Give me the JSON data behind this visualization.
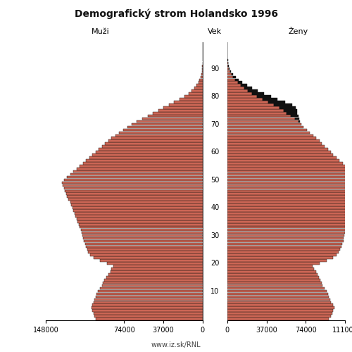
{
  "title": "Demografický strom Holandsko 1996",
  "label_males": "Muži",
  "label_age": "Vek",
  "label_females": "Ženy",
  "footnote": "www.iz.sk/RNL",
  "bar_color": "#cc6655",
  "black_color": "#111111",
  "edge_color": "#111111",
  "background": "#ffffff",
  "xlim_male": 148000,
  "xlim_female": 111000,
  "xticks_male": [
    148000,
    74000,
    37000,
    0
  ],
  "xticks_female": [
    0,
    37000,
    74000,
    111000
  ],
  "yticks": [
    10,
    20,
    30,
    40,
    50,
    60,
    70,
    80,
    90
  ],
  "males": [
    101000,
    102000,
    103000,
    104000,
    105000,
    104000,
    103000,
    102000,
    101000,
    100000,
    99000,
    97000,
    95000,
    94000,
    93000,
    91000,
    89000,
    87000,
    86000,
    84000,
    90000,
    97000,
    103000,
    106000,
    108000,
    109000,
    110000,
    111000,
    112000,
    113000,
    113500,
    114000,
    115000,
    116000,
    117000,
    118000,
    119000,
    120000,
    121000,
    122000,
    123000,
    124000,
    125000,
    126500,
    128000,
    129000,
    130000,
    131000,
    132000,
    133000,
    131000,
    128000,
    125000,
    122000,
    119000,
    116000,
    113000,
    110000,
    107000,
    104000,
    101000,
    98000,
    95000,
    92000,
    89000,
    86000,
    82000,
    79000,
    75000,
    71000,
    67000,
    62000,
    57000,
    52000,
    47000,
    42000,
    37000,
    32000,
    27000,
    22000,
    17500,
    13500,
    10500,
    8000,
    5800,
    4200,
    3000,
    2100,
    1400,
    900,
    560,
    340,
    200,
    120,
    70,
    40,
    22,
    12,
    6,
    3
  ],
  "males_black": [
    0,
    0,
    0,
    0,
    0,
    0,
    0,
    0,
    0,
    0,
    0,
    0,
    0,
    0,
    0,
    0,
    0,
    0,
    0,
    0,
    0,
    0,
    0,
    0,
    0,
    0,
    0,
    0,
    0,
    0,
    0,
    0,
    0,
    0,
    0,
    0,
    0,
    0,
    0,
    0,
    0,
    0,
    0,
    0,
    0,
    0,
    0,
    0,
    0,
    0,
    0,
    0,
    0,
    0,
    0,
    0,
    0,
    0,
    0,
    0,
    0,
    0,
    0,
    0,
    0,
    0,
    0,
    0,
    0,
    0,
    0,
    0,
    0,
    0,
    0,
    0,
    0,
    0,
    0,
    0,
    0,
    0,
    0,
    0,
    0,
    0,
    0,
    0,
    0,
    0,
    0,
    0,
    0,
    0,
    0,
    0,
    0,
    0,
    0,
    0
  ],
  "females": [
    96000,
    97500,
    99000,
    100000,
    101000,
    99500,
    98000,
    97000,
    96000,
    95000,
    94000,
    92000,
    90000,
    89000,
    88000,
    86500,
    85000,
    83500,
    82000,
    80500,
    87000,
    94000,
    100000,
    103000,
    105000,
    106500,
    107500,
    108500,
    109500,
    110000,
    110500,
    111000,
    112000,
    113000,
    114000,
    115000,
    116000,
    117000,
    118000,
    119000,
    119500,
    120500,
    121500,
    122500,
    124000,
    125000,
    126000,
    127000,
    128000,
    129000,
    127000,
    124000,
    121000,
    118000,
    115000,
    112000,
    109000,
    106000,
    103000,
    100000,
    98000,
    95000,
    92000,
    89000,
    87000,
    84000,
    81000,
    78000,
    75000,
    72000,
    70000,
    67000,
    64000,
    60000,
    56000,
    53000,
    49000,
    44000,
    38500,
    33000,
    28000,
    23500,
    19500,
    16000,
    13000,
    10000,
    7500,
    5500,
    3800,
    2500,
    1600,
    980,
    590,
    350,
    200,
    115,
    65,
    35,
    17,
    8
  ],
  "females_black": [
    0,
    0,
    0,
    0,
    0,
    0,
    0,
    0,
    0,
    0,
    0,
    0,
    0,
    0,
    0,
    0,
    0,
    0,
    0,
    0,
    0,
    0,
    0,
    0,
    0,
    0,
    0,
    0,
    0,
    0,
    0,
    0,
    0,
    0,
    0,
    0,
    0,
    0,
    0,
    0,
    0,
    0,
    0,
    0,
    0,
    0,
    0,
    0,
    0,
    0,
    0,
    0,
    0,
    0,
    0,
    0,
    0,
    0,
    0,
    0,
    0,
    0,
    0,
    0,
    0,
    0,
    0,
    0,
    0,
    0,
    0,
    1500,
    4000,
    7000,
    10000,
    13000,
    15500,
    17000,
    16000,
    14500,
    13000,
    11000,
    9000,
    7200,
    5700,
    4300,
    3200,
    2300,
    1600,
    1000,
    630,
    380,
    230,
    135,
    78,
    45,
    25,
    13,
    6,
    3
  ]
}
